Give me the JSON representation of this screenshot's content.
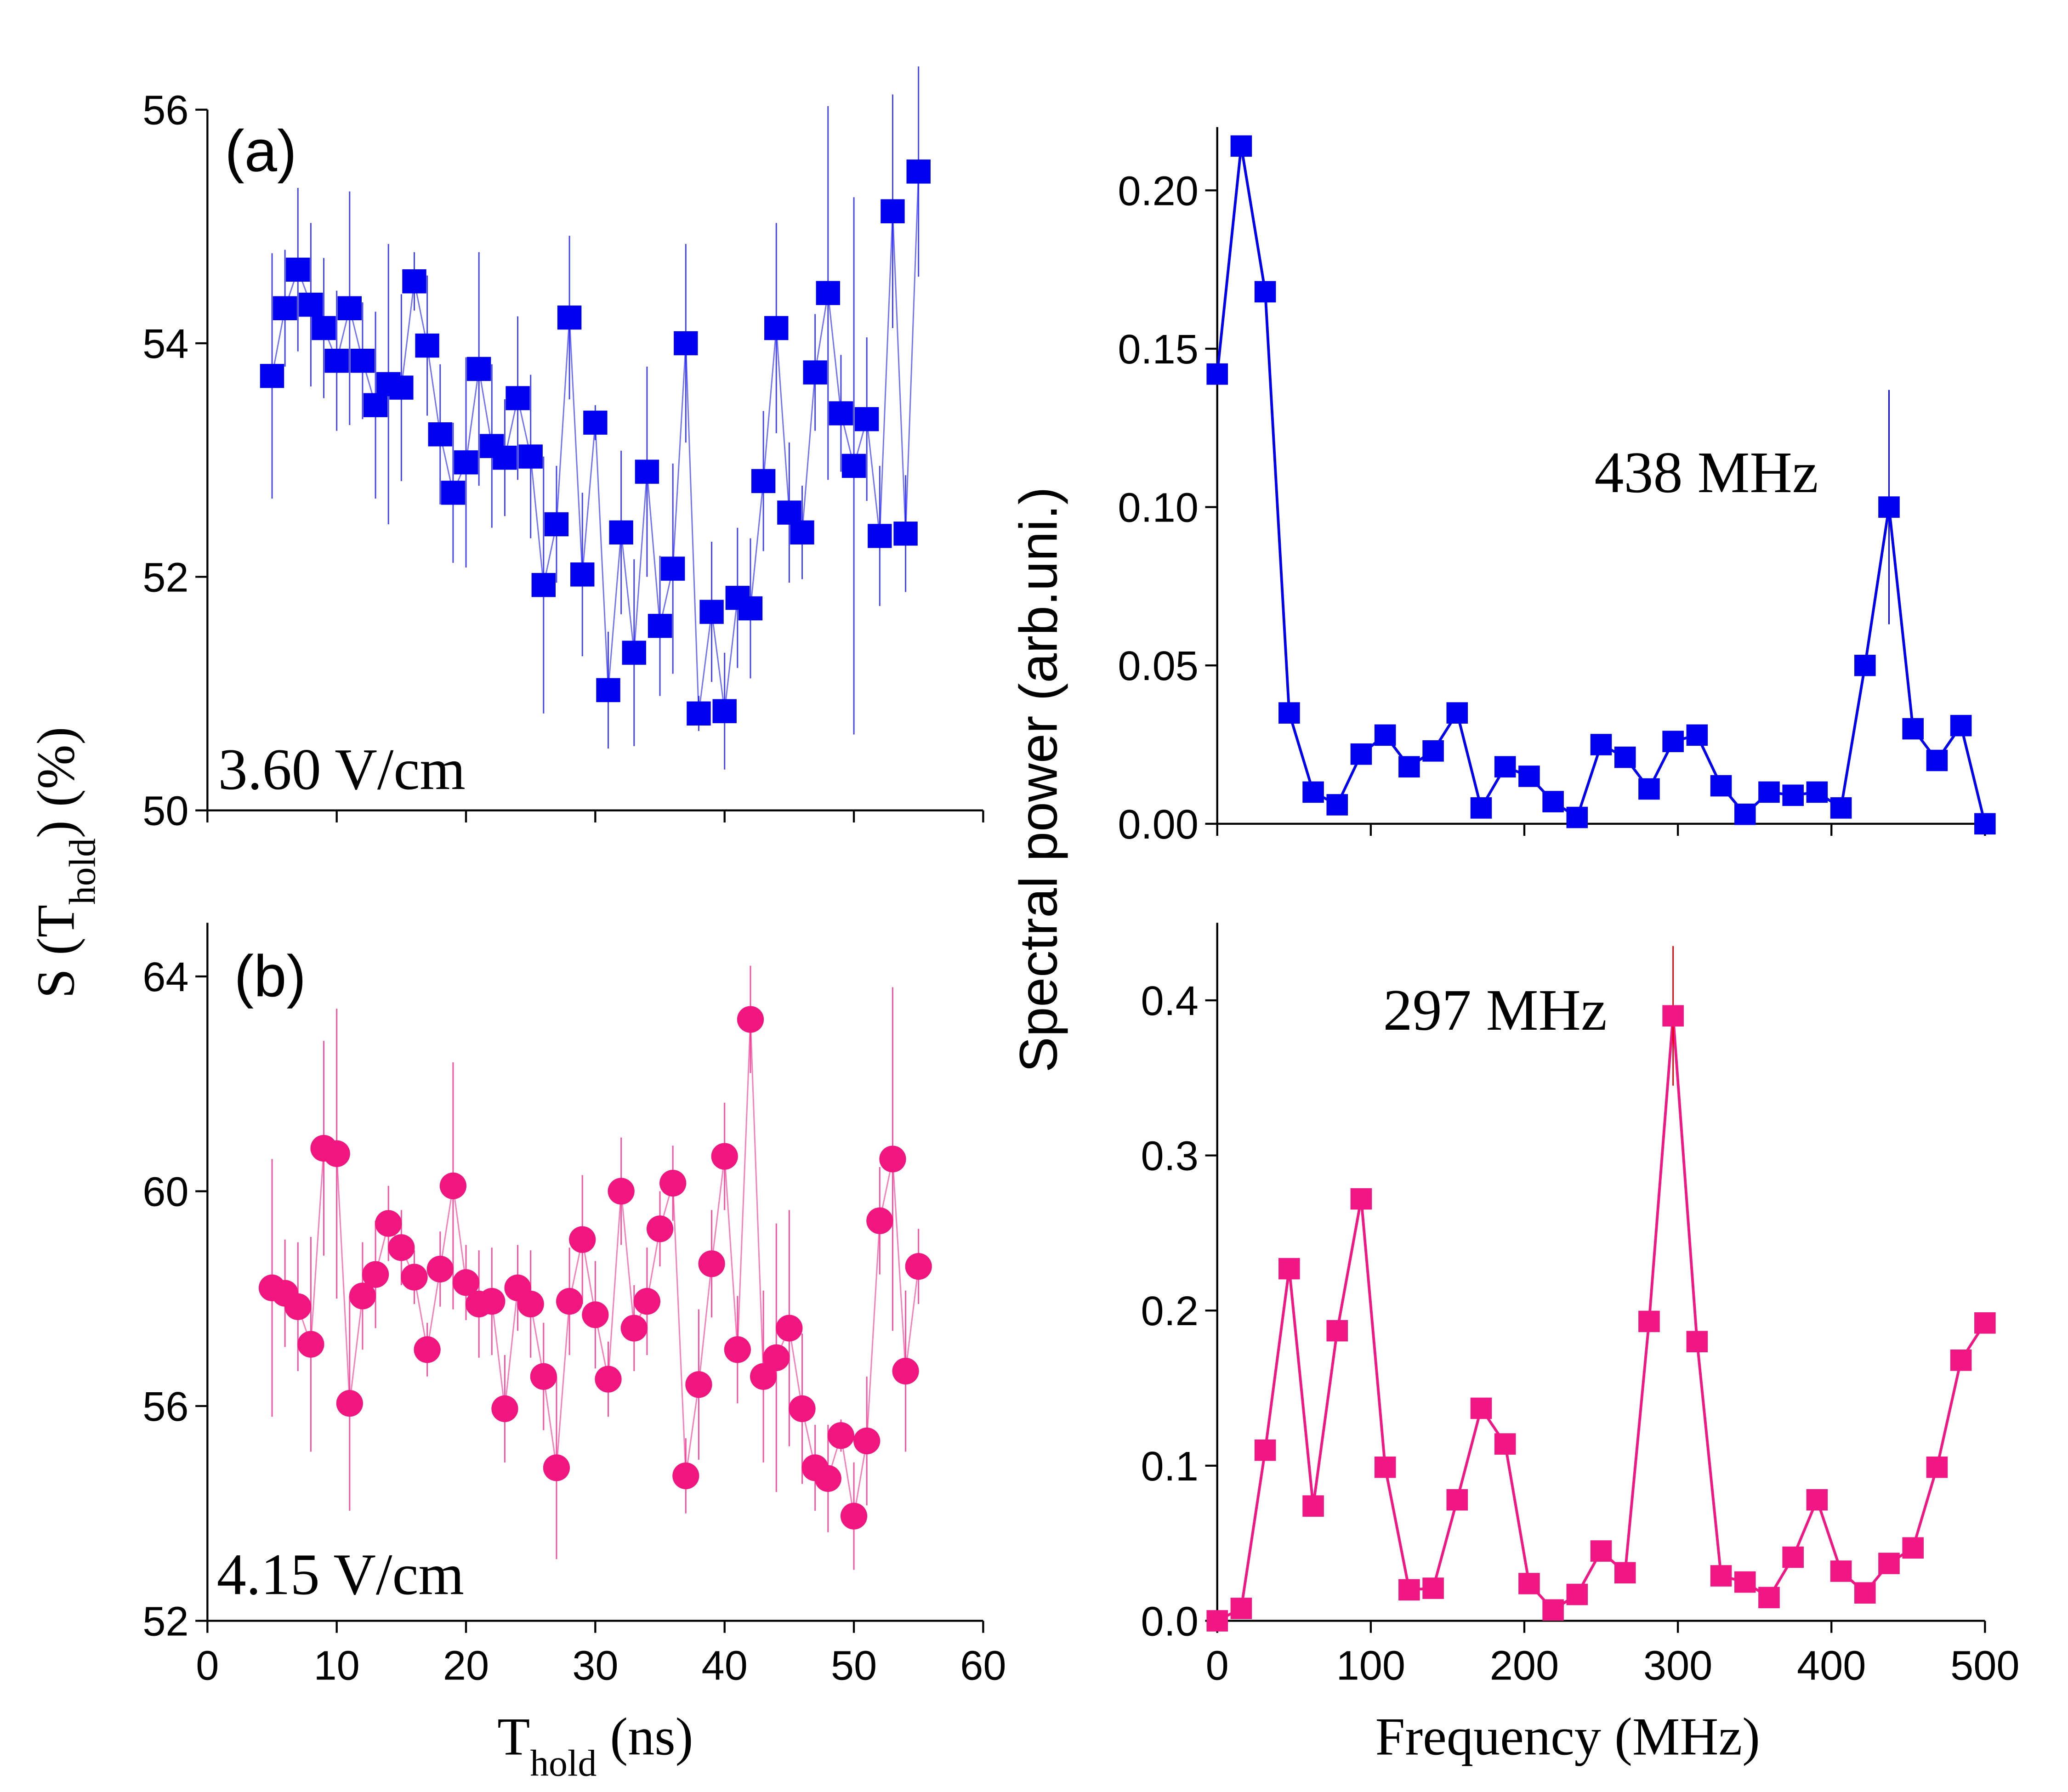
{
  "chart_data": [
    {
      "type": "line",
      "marker": "square",
      "color": "#0000f0",
      "ylabel": {
        "text": "S (T",
        "sub": "hold",
        "after": ") (%)"
      },
      "annotations": [
        "(a)",
        "3.60 V/cm"
      ],
      "x": [
        5,
        6,
        7,
        8,
        9,
        10,
        11,
        12,
        13,
        14,
        15,
        16,
        17,
        18,
        19,
        20,
        21,
        22,
        23,
        24,
        25,
        26,
        27,
        28,
        29,
        30,
        31,
        32,
        33,
        34,
        35,
        36,
        37,
        38,
        39,
        40,
        41,
        42,
        43,
        44,
        45,
        46,
        47,
        48,
        49,
        50,
        51,
        52,
        53,
        54,
        55
      ],
      "values": [
        53.72,
        54.3,
        54.63,
        54.33,
        54.13,
        53.85,
        54.3,
        53.85,
        53.47,
        53.65,
        53.62,
        54.53,
        53.98,
        53.22,
        52.72,
        52.98,
        53.78,
        53.12,
        53.02,
        53.53,
        53.03,
        51.93,
        52.45,
        54.22,
        52.02,
        53.32,
        51.03,
        52.38,
        51.35,
        52.9,
        51.58,
        52.07,
        54.0,
        50.83,
        51.7,
        50.85,
        51.82,
        51.73,
        52.82,
        54.13,
        52.55,
        52.38,
        53.75,
        54.43,
        53.4,
        52.95,
        53.35,
        52.35,
        55.13,
        52.37,
        55.47
      ],
      "errors": [
        1.05,
        0.5,
        0.7,
        0.7,
        0.6,
        0.6,
        1.0,
        0.5,
        0.8,
        1.2,
        0.8,
        0.25,
        0.6,
        0.6,
        0.6,
        0.9,
        1.0,
        0.7,
        0.5,
        0.7,
        0.7,
        1.1,
        0.5,
        0.7,
        0.7,
        0.15,
        0.5,
        0.7,
        0.8,
        0.9,
        0.6,
        0.9,
        0.85,
        0.15,
        0.6,
        0.5,
        0.6,
        0.6,
        0.6,
        0.9,
        0.6,
        0.4,
        0.5,
        1.6,
        0.5,
        2.3,
        0.7,
        0.6,
        1.0,
        0.5,
        0.9
      ],
      "xlim": [
        0,
        60
      ],
      "xticks": [
        0,
        10,
        20,
        30,
        40,
        50,
        60
      ],
      "xtick_labels": false,
      "ylim": [
        50,
        56
      ],
      "yticks": [
        50,
        52,
        54,
        56
      ]
    },
    {
      "type": "line",
      "marker": "circle",
      "color": "#f0157f",
      "xlabel": {
        "text": "T",
        "sub": "hold",
        "after": " (ns)"
      },
      "annotations": [
        "(b)",
        "4.15 V/cm"
      ],
      "x": [
        5,
        6,
        7,
        8,
        9,
        10,
        11,
        12,
        13,
        14,
        15,
        16,
        17,
        18,
        19,
        20,
        21,
        22,
        23,
        24,
        25,
        26,
        27,
        28,
        29,
        30,
        31,
        32,
        33,
        34,
        35,
        36,
        37,
        38,
        39,
        40,
        41,
        42,
        43,
        44,
        45,
        46,
        47,
        48,
        49,
        50,
        51,
        52,
        53,
        54,
        55
      ],
      "values": [
        58.2,
        58.1,
        57.85,
        57.15,
        60.8,
        60.7,
        56.05,
        58.05,
        58.45,
        59.4,
        58.95,
        58.4,
        57.05,
        58.55,
        60.1,
        58.3,
        57.9,
        57.95,
        55.95,
        58.2,
        57.9,
        56.55,
        54.85,
        57.95,
        59.1,
        57.7,
        56.5,
        60.0,
        57.45,
        57.95,
        59.3,
        60.15,
        54.7,
        56.4,
        58.65,
        60.65,
        57.05,
        63.2,
        56.55,
        56.9,
        57.45,
        55.95,
        54.85,
        54.65,
        55.45,
        53.95,
        55.35,
        59.45,
        60.6,
        56.65,
        58.6
      ],
      "errors": [
        2.4,
        1.0,
        1.2,
        2.0,
        2.0,
        2.7,
        2.0,
        1.0,
        1.0,
        0.7,
        0.7,
        0.5,
        0.5,
        0.7,
        2.3,
        0.7,
        1.0,
        1.0,
        1.0,
        0.8,
        1.0,
        1.0,
        1.7,
        1.0,
        1.2,
        1.0,
        0.7,
        1.0,
        0.8,
        1.0,
        0.7,
        0.7,
        0.7,
        1.4,
        1.0,
        1.0,
        1.0,
        1.0,
        1.6,
        2.5,
        2.2,
        1.4,
        0.8,
        1.0,
        0.3,
        1.0,
        1.2,
        1.0,
        3.2,
        1.5,
        0.7
      ],
      "xlim": [
        0,
        60
      ],
      "xticks": [
        0,
        10,
        20,
        30,
        40,
        50,
        60
      ],
      "xtick_labels": true,
      "ylim": [
        52,
        65
      ],
      "yticks": [
        52,
        56,
        60,
        64
      ]
    },
    {
      "type": "line",
      "marker": "square",
      "color": "#0000f0",
      "error_color": "#0000f0",
      "ylabel": {
        "text": "Spectral power (arb.uni.)"
      },
      "annotations": [
        "438 MHz"
      ],
      "x": [
        0,
        15.625,
        31.25,
        46.875,
        62.5,
        78.125,
        93.75,
        109.375,
        125,
        140.625,
        156.25,
        171.875,
        187.5,
        203.125,
        218.75,
        234.375,
        250,
        265.625,
        281.25,
        296.875,
        312.5,
        328.125,
        343.75,
        359.375,
        375,
        390.625,
        406.25,
        421.875,
        437.5,
        453.125,
        468.75,
        484.375,
        500
      ],
      "values": [
        0.142,
        0.214,
        0.168,
        0.035,
        0.01,
        0.006,
        0.022,
        0.028,
        0.018,
        0.023,
        0.035,
        0.005,
        0.018,
        0.015,
        0.007,
        0.002,
        0.025,
        0.021,
        0.011,
        0.026,
        0.028,
        0.012,
        0.003,
        0.01,
        0.009,
        0.01,
        0.005,
        0.05,
        0.1,
        0.03,
        0.02,
        0.031,
        0.0
      ],
      "errors": [
        null,
        null,
        null,
        null,
        null,
        null,
        null,
        null,
        null,
        null,
        null,
        null,
        null,
        null,
        null,
        null,
        null,
        null,
        null,
        null,
        null,
        null,
        null,
        null,
        null,
        null,
        null,
        null,
        0.037,
        null,
        null,
        null,
        null
      ],
      "xlim": [
        0,
        500
      ],
      "xticks": [
        0,
        100,
        200,
        300,
        400,
        500
      ],
      "xtick_labels": false,
      "ylim": [
        0,
        0.22
      ],
      "yticks": [
        {
          "value": 0,
          "label": "0.00"
        },
        {
          "value": 0.05,
          "label": "0.05"
        },
        {
          "value": 0.1,
          "label": "0.10"
        },
        {
          "value": 0.15,
          "label": "0.15"
        },
        {
          "value": 0.2,
          "label": "0.20"
        }
      ]
    },
    {
      "type": "line",
      "marker": "square",
      "color": "#f01784",
      "error_color": "#e00000",
      "xlabel": {
        "text": "Frequency (MHz)"
      },
      "annotations": [
        "297 MHz"
      ],
      "x": [
        0,
        15.625,
        31.25,
        46.875,
        62.5,
        78.125,
        93.75,
        109.375,
        125,
        140.625,
        156.25,
        171.875,
        187.5,
        203.125,
        218.75,
        234.375,
        250,
        265.625,
        281.25,
        296.875,
        312.5,
        328.125,
        343.75,
        359.375,
        375,
        390.625,
        406.25,
        421.875,
        437.5,
        453.125,
        468.75,
        484.375,
        500
      ],
      "values": [
        0.0,
        0.008,
        0.11,
        0.227,
        0.074,
        0.187,
        0.272,
        0.099,
        0.02,
        0.021,
        0.078,
        0.137,
        0.114,
        0.024,
        0.007,
        0.017,
        0.045,
        0.031,
        0.193,
        0.39,
        0.18,
        0.029,
        0.025,
        0.015,
        0.041,
        0.078,
        0.032,
        0.018,
        0.037,
        0.047,
        0.099,
        0.168,
        0.192
      ],
      "errors": [
        null,
        null,
        null,
        null,
        null,
        null,
        null,
        null,
        null,
        null,
        null,
        null,
        null,
        null,
        null,
        null,
        null,
        null,
        null,
        0.045,
        null,
        null,
        null,
        null,
        null,
        null,
        null,
        null,
        null,
        null,
        null,
        null,
        null
      ],
      "xlim": [
        0,
        500
      ],
      "xticks": [
        0,
        100,
        200,
        300,
        400,
        500
      ],
      "xtick_labels": true,
      "ylim": [
        0,
        0.45
      ],
      "yticks": [
        {
          "value": 0,
          "label": "0.0"
        },
        {
          "value": 0.1,
          "label": "0.1"
        },
        {
          "value": 0.2,
          "label": "0.2"
        },
        {
          "value": 0.3,
          "label": "0.3"
        },
        {
          "value": 0.4,
          "label": "0.4"
        }
      ]
    }
  ]
}
